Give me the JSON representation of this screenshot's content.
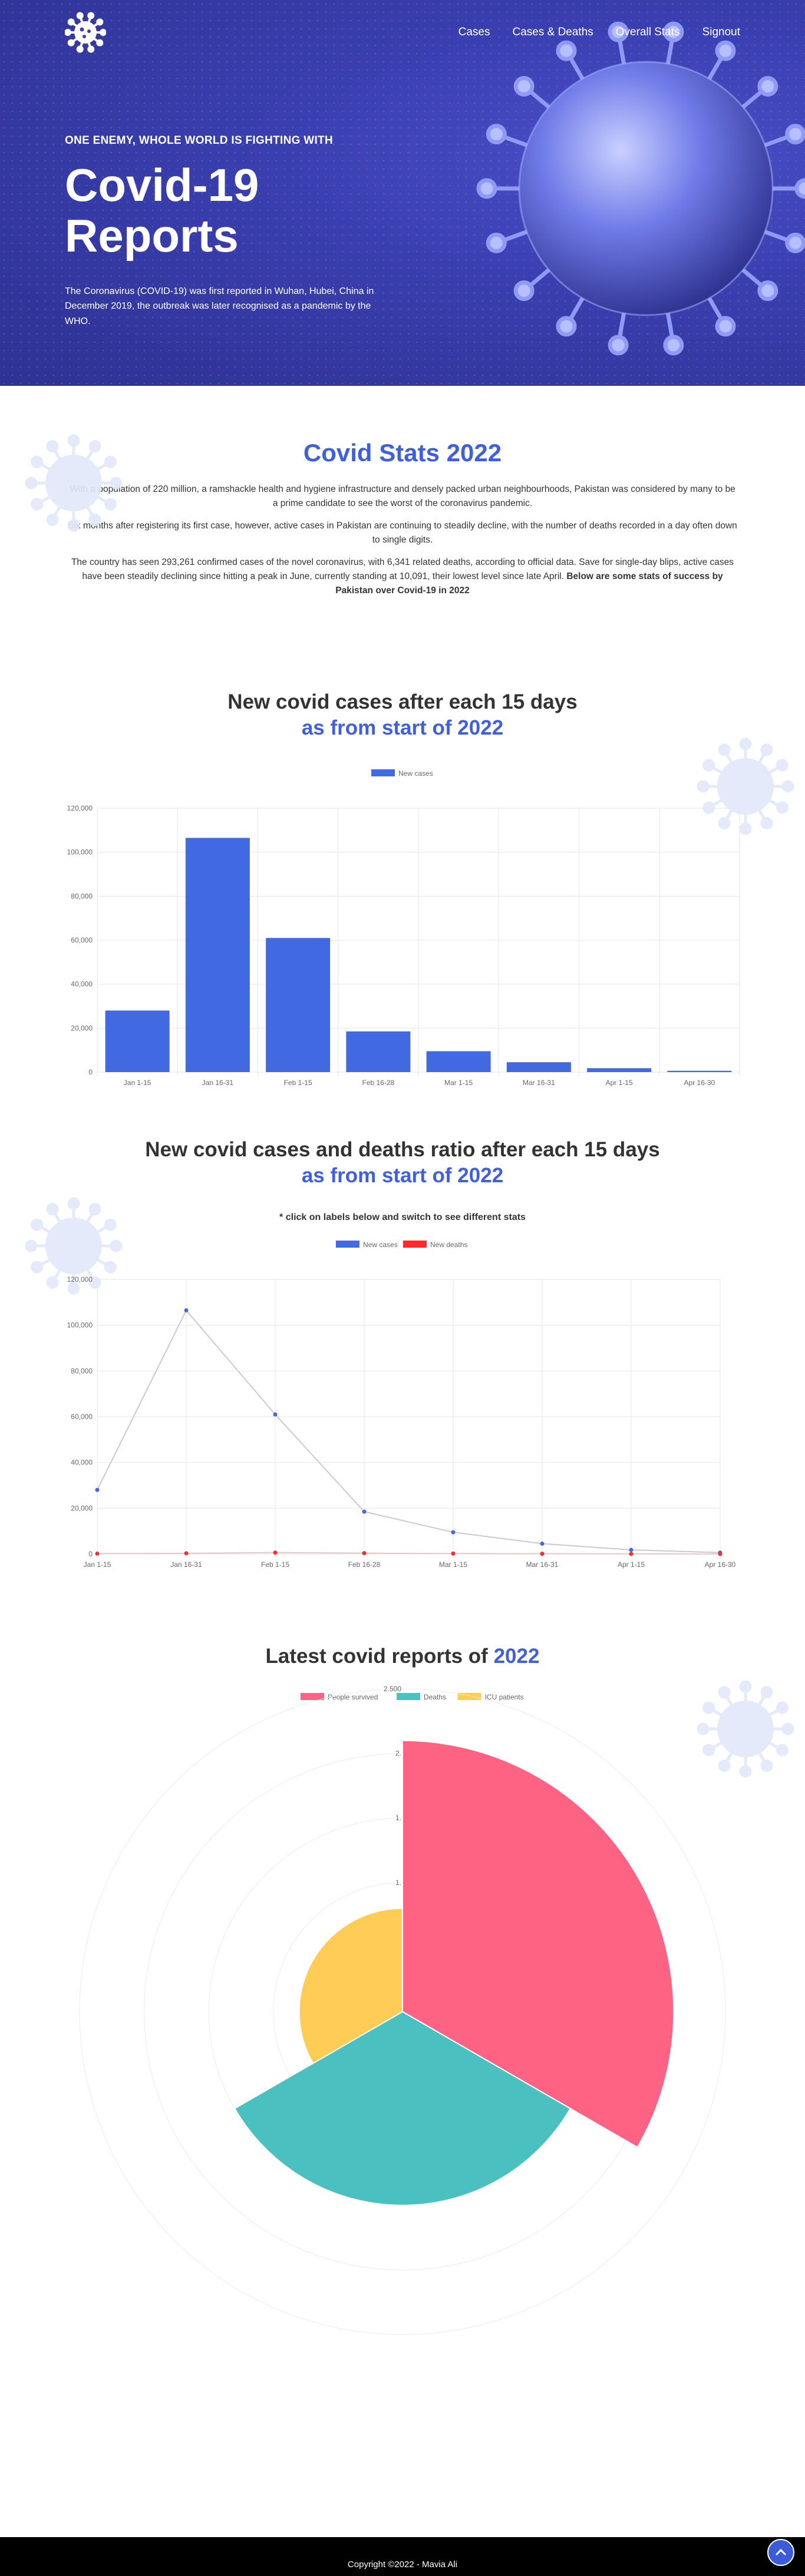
{
  "nav": {
    "links": [
      "Cases",
      "Cases & Deaths",
      "Overall Stats",
      "Signout"
    ]
  },
  "hero": {
    "tagline": "ONE ENEMY, WHOLE WORLD IS FIGHTING WITH",
    "title": "Covid-19 Reports",
    "description": "The Coronavirus (COVID-19) was first reported in Wuhan, Hubei, China in December 2019, the outbreak was later recognised as a pandemic by the WHO."
  },
  "stats": {
    "title": "Covid Stats 2022",
    "p1": "With a population of 220 million, a ramshackle health and hygiene infrastructure and densely packed urban neighbourhoods, Pakistan was considered by many to be a prime candidate to see the worst of the coronavirus pandemic.",
    "p2": "Six months after registering its first case, however, active cases in Pakistan are continuing to steadily decline, with the number of deaths recorded in a day often down to single digits.",
    "p3": "The country has seen 293,261 confirmed cases of the novel coronavirus, with 6,341 related deaths, according to official data. Save for single-day blips, active cases have been steadily declining since hitting a peak in June, currently standing at 10,091, their lowest level since late April.",
    "p3_bold": "Below are some stats of success by Pakistan over Covid-19 in 2022"
  },
  "section1": {
    "title": "New covid cases after each 15 days",
    "subtitle": "as from start of 2022"
  },
  "section2": {
    "title": "New covid cases and deaths ratio after each 15 days",
    "subtitle": "as from start of 2022",
    "note": "* click on labels below and switch to see different stats"
  },
  "section3": {
    "title": "Latest covid reports of",
    "year": "2022"
  },
  "footer": {
    "text": "Copyright ©2022 - Mavia Ali"
  },
  "colors": {
    "accent": "#3f5fe0",
    "bar": "#4169e1",
    "deaths": "#ff2a2a",
    "survived": "#ff6384",
    "deathsPolar": "#4bc0c0",
    "icu": "#ffcd56"
  },
  "chart_data": [
    {
      "type": "bar",
      "categories": [
        "Jan 1-15",
        "Jan 16-31",
        "Feb 1-15",
        "Feb 16-28",
        "Mar 1-15",
        "Mar 16-31",
        "Apr 1-15",
        "Apr 16-30"
      ],
      "series": [
        {
          "name": "New cases",
          "values": [
            28000,
            106500,
            61000,
            18500,
            9500,
            4500,
            1800,
            600
          ]
        }
      ],
      "ylim": [
        0,
        120000
      ],
      "yticks": [
        "0",
        "20,000",
        "40,000",
        "60,000",
        "80,000",
        "100,000",
        "120,000"
      ],
      "legend": "top",
      "grid": true
    },
    {
      "type": "line",
      "categories": [
        "Jan 1-15",
        "Jan 16-31",
        "Feb 1-15",
        "Feb 16-28",
        "Mar 1-15",
        "Mar 16-31",
        "Apr 1-15",
        "Apr 16-30"
      ],
      "series": [
        {
          "name": "New cases",
          "values": [
            28000,
            106500,
            61000,
            18500,
            9500,
            4500,
            1800,
            600
          ]
        },
        {
          "name": "New deaths",
          "values": [
            150,
            300,
            600,
            350,
            200,
            100,
            50,
            20
          ]
        }
      ],
      "ylim": [
        0,
        120000
      ],
      "yticks": [
        "0",
        "20,000",
        "40,000",
        "60,000",
        "80,000",
        "100,000",
        "120,000"
      ],
      "legend": "top",
      "grid": true
    },
    {
      "type": "polarArea",
      "labels": [
        "People survived",
        "Deaths",
        "ICU patients"
      ],
      "values": [
        2100,
        1500,
        800
      ],
      "rmax": 2500,
      "rticks": [
        "1.",
        "1.",
        "2.",
        "2.500"
      ],
      "legend": "top"
    }
  ]
}
